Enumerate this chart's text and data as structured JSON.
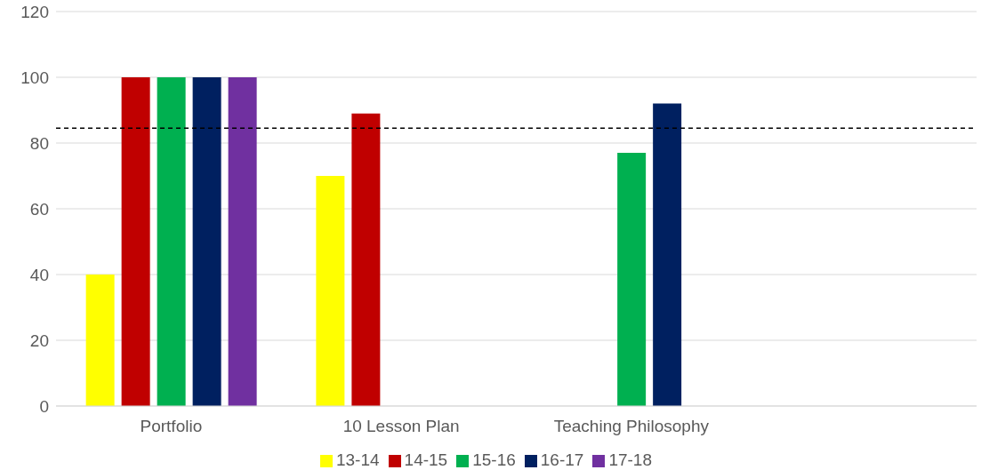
{
  "chart_data": {
    "type": "bar",
    "categories": [
      "Portfolio",
      "10 Lesson Plan",
      "Teaching Philosophy",
      null
    ],
    "series": [
      {
        "name": "13-14",
        "color": "#ffff00",
        "values": [
          40,
          70,
          null,
          null
        ]
      },
      {
        "name": "14-15",
        "color": "#c00000",
        "values": [
          100,
          89,
          null,
          null
        ]
      },
      {
        "name": "15-16",
        "color": "#00b050",
        "values": [
          100,
          null,
          77,
          null
        ]
      },
      {
        "name": "16-17",
        "color": "#002060",
        "values": [
          100,
          null,
          92,
          null
        ]
      },
      {
        "name": "17-18",
        "color": "#7030a0",
        "values": [
          100,
          null,
          null,
          null
        ]
      }
    ],
    "ylim": [
      0,
      120
    ],
    "yticks": [
      0,
      20,
      40,
      60,
      80,
      100,
      120
    ],
    "grid": "y",
    "legend": "bottom",
    "ref_lines": [
      {
        "axis": "y",
        "value": 84.5,
        "color": "#000000",
        "line_style": "dashed"
      }
    ]
  }
}
